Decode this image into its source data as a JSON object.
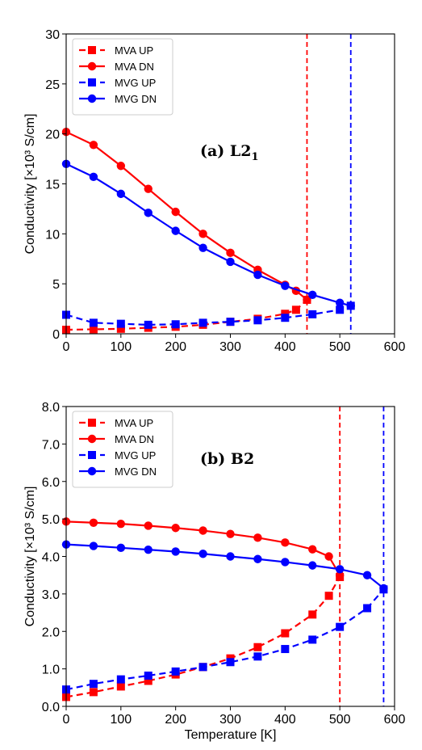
{
  "chart_data": [
    {
      "type": "line",
      "panel_label": "(a) L2",
      "panel_label_subscript": "1",
      "ylabel": "Conductivity [×10³ S/cm]",
      "xlabel": "",
      "xlim": [
        0,
        600
      ],
      "ylim": [
        0,
        30
      ],
      "xticks": [
        0,
        100,
        200,
        300,
        400,
        500,
        600
      ],
      "xtick_labels": [
        "0",
        "100",
        "200",
        "300",
        "400",
        "500",
        "600"
      ],
      "yticks": [
        0,
        5,
        10,
        15,
        20,
        25,
        30
      ],
      "ytick_labels": [
        "0",
        "5",
        "10",
        "15",
        "20",
        "25",
        "30"
      ],
      "grid": false,
      "legend_position": "top-left",
      "series": [
        {
          "name": "MVA UP",
          "color": "#ff0000",
          "marker": "square",
          "linestyle": "dashed",
          "x": [
            0,
            50,
            100,
            150,
            200,
            250,
            300,
            350,
            400,
            420,
            440
          ],
          "y": [
            0.4,
            0.45,
            0.5,
            0.6,
            0.7,
            0.9,
            1.2,
            1.5,
            2.0,
            2.4,
            3.4
          ]
        },
        {
          "name": "MVA DN",
          "color": "#ff0000",
          "marker": "circle",
          "linestyle": "solid",
          "x": [
            0,
            50,
            100,
            150,
            200,
            250,
            300,
            350,
            400,
            420,
            440
          ],
          "y": [
            20.2,
            18.9,
            16.8,
            14.5,
            12.2,
            10.0,
            8.1,
            6.4,
            4.9,
            4.3,
            3.4
          ]
        },
        {
          "name": "MVG UP",
          "color": "#0000ff",
          "marker": "square",
          "linestyle": "dashed",
          "x": [
            0,
            50,
            100,
            150,
            200,
            250,
            300,
            350,
            400,
            450,
            500,
            520
          ],
          "y": [
            1.9,
            1.1,
            1.0,
            0.9,
            0.95,
            1.1,
            1.2,
            1.35,
            1.6,
            1.95,
            2.4,
            2.8
          ]
        },
        {
          "name": "MVG DN",
          "color": "#0000ff",
          "marker": "circle",
          "linestyle": "solid",
          "x": [
            0,
            50,
            100,
            150,
            200,
            250,
            300,
            350,
            400,
            450,
            500,
            520
          ],
          "y": [
            17.0,
            15.7,
            14.0,
            12.1,
            10.3,
            8.6,
            7.2,
            5.9,
            4.8,
            3.9,
            3.1,
            2.8
          ]
        }
      ],
      "vlines": [
        {
          "x": 440,
          "color": "#ff0000",
          "linestyle": "dashed"
        },
        {
          "x": 520,
          "color": "#0000ff",
          "linestyle": "dashed"
        }
      ]
    },
    {
      "type": "line",
      "panel_label": "(b) B2",
      "panel_label_subscript": "",
      "ylabel": "Conductivity [×10³ S/cm]",
      "xlabel": "Temperature [K]",
      "xlim": [
        0,
        600
      ],
      "ylim": [
        0,
        8
      ],
      "xticks": [
        0,
        100,
        200,
        300,
        400,
        500,
        600
      ],
      "xtick_labels": [
        "0",
        "100",
        "200",
        "300",
        "400",
        "500",
        "600"
      ],
      "yticks": [
        0,
        1,
        2,
        3,
        4,
        5,
        6,
        7,
        8
      ],
      "ytick_labels": [
        "0.0",
        "1.0",
        "2.0",
        "3.0",
        "4.0",
        "5.0",
        "6.0",
        "7.0",
        "8.0"
      ],
      "grid": false,
      "legend_position": "top-left",
      "series": [
        {
          "name": "MVA UP",
          "color": "#ff0000",
          "marker": "square",
          "linestyle": "dashed",
          "x": [
            0,
            50,
            100,
            150,
            200,
            250,
            300,
            350,
            400,
            450,
            480,
            500
          ],
          "y": [
            0.25,
            0.38,
            0.53,
            0.68,
            0.85,
            1.05,
            1.28,
            1.58,
            1.95,
            2.45,
            2.95,
            3.45
          ]
        },
        {
          "name": "MVA DN",
          "color": "#ff0000",
          "marker": "circle",
          "linestyle": "solid",
          "x": [
            0,
            50,
            100,
            150,
            200,
            250,
            300,
            350,
            400,
            450,
            480,
            500
          ],
          "y": [
            4.93,
            4.9,
            4.87,
            4.82,
            4.76,
            4.69,
            4.6,
            4.5,
            4.37,
            4.19,
            4.0,
            3.5
          ]
        },
        {
          "name": "MVG UP",
          "color": "#0000ff",
          "marker": "square",
          "linestyle": "dashed",
          "x": [
            0,
            50,
            100,
            150,
            200,
            250,
            300,
            350,
            400,
            450,
            500,
            550,
            580
          ],
          "y": [
            0.45,
            0.6,
            0.72,
            0.82,
            0.93,
            1.05,
            1.18,
            1.33,
            1.53,
            1.78,
            2.12,
            2.62,
            3.12
          ]
        },
        {
          "name": "MVG DN",
          "color": "#0000ff",
          "marker": "circle",
          "linestyle": "solid",
          "x": [
            0,
            50,
            100,
            150,
            200,
            250,
            300,
            350,
            400,
            450,
            500,
            550,
            580
          ],
          "y": [
            4.32,
            4.28,
            4.23,
            4.18,
            4.13,
            4.07,
            4.0,
            3.93,
            3.85,
            3.76,
            3.66,
            3.5,
            3.15
          ]
        }
      ],
      "vlines": [
        {
          "x": 500,
          "color": "#ff0000",
          "linestyle": "dashed"
        },
        {
          "x": 580,
          "color": "#0000ff",
          "linestyle": "dashed"
        }
      ]
    }
  ]
}
